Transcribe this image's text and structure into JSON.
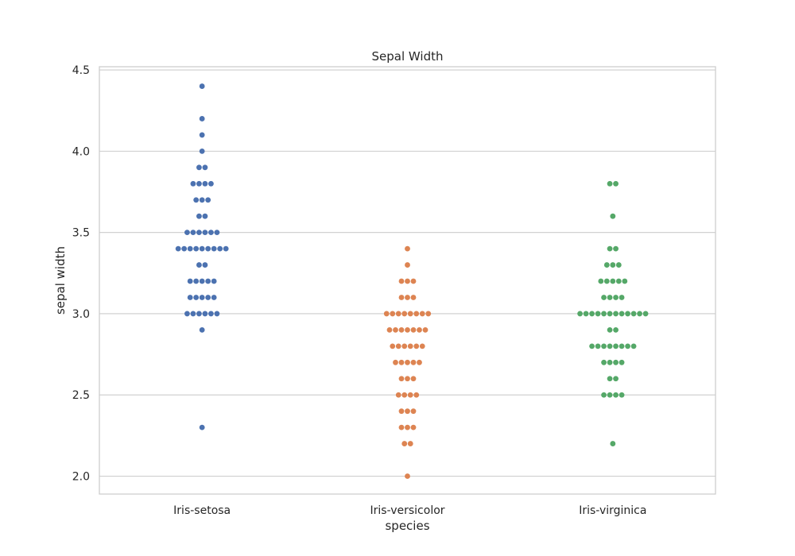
{
  "chart_data": {
    "type": "scatter",
    "plot_style": "swarm",
    "title": "Sepal Width",
    "xlabel": "species",
    "ylabel": "sepal width",
    "categories": [
      "Iris-setosa",
      "Iris-versicolor",
      "Iris-virginica"
    ],
    "ylim": [
      1.89,
      4.52
    ],
    "yticks": [
      2.0,
      2.5,
      3.0,
      3.5,
      4.0,
      4.5
    ],
    "ytick_labels": [
      "2.0",
      "2.5",
      "3.0",
      "3.5",
      "4.0",
      "4.5"
    ],
    "grid": "horizontal",
    "series": [
      {
        "category": "Iris-setosa",
        "color": "#4c72b0",
        "values": [
          2.3,
          2.9,
          3.0,
          3.0,
          3.0,
          3.0,
          3.0,
          3.0,
          3.1,
          3.1,
          3.1,
          3.1,
          3.1,
          3.2,
          3.2,
          3.2,
          3.2,
          3.2,
          3.3,
          3.3,
          3.4,
          3.4,
          3.4,
          3.4,
          3.4,
          3.4,
          3.4,
          3.4,
          3.4,
          3.5,
          3.5,
          3.5,
          3.5,
          3.5,
          3.5,
          3.6,
          3.6,
          3.7,
          3.7,
          3.7,
          3.8,
          3.8,
          3.8,
          3.8,
          3.9,
          3.9,
          4.0,
          4.1,
          4.2,
          4.4
        ]
      },
      {
        "category": "Iris-versicolor",
        "color": "#dd8452",
        "values": [
          2.0,
          2.2,
          2.2,
          2.3,
          2.3,
          2.3,
          2.4,
          2.4,
          2.4,
          2.5,
          2.5,
          2.5,
          2.5,
          2.6,
          2.6,
          2.6,
          2.7,
          2.7,
          2.7,
          2.7,
          2.7,
          2.8,
          2.8,
          2.8,
          2.8,
          2.8,
          2.8,
          2.9,
          2.9,
          2.9,
          2.9,
          2.9,
          2.9,
          2.9,
          3.0,
          3.0,
          3.0,
          3.0,
          3.0,
          3.0,
          3.0,
          3.0,
          3.1,
          3.1,
          3.1,
          3.2,
          3.2,
          3.2,
          3.3,
          3.4
        ]
      },
      {
        "category": "Iris-virginica",
        "color": "#55a868",
        "values": [
          2.2,
          2.5,
          2.5,
          2.5,
          2.5,
          2.6,
          2.6,
          2.7,
          2.7,
          2.7,
          2.7,
          2.8,
          2.8,
          2.8,
          2.8,
          2.8,
          2.8,
          2.8,
          2.8,
          2.9,
          2.9,
          3.0,
          3.0,
          3.0,
          3.0,
          3.0,
          3.0,
          3.0,
          3.0,
          3.0,
          3.0,
          3.0,
          3.0,
          3.1,
          3.1,
          3.1,
          3.1,
          3.2,
          3.2,
          3.2,
          3.2,
          3.2,
          3.3,
          3.3,
          3.3,
          3.4,
          3.4,
          3.6,
          3.8,
          3.8
        ]
      }
    ]
  }
}
